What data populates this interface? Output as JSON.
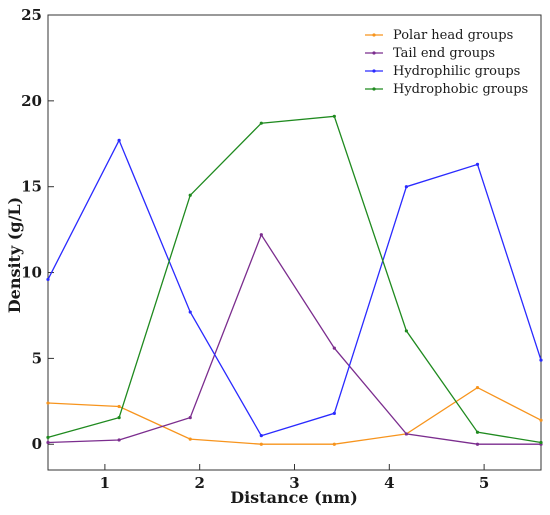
{
  "chart_data": {
    "type": "line",
    "title": "",
    "xlabel": "Distance (nm)",
    "ylabel": "Density (g/L)",
    "xlim": [
      0.4,
      5.6
    ],
    "ylim": [
      -1.5,
      25
    ],
    "xticks": [
      1,
      2,
      3,
      4,
      5
    ],
    "yticks": [
      0,
      5,
      10,
      15,
      20,
      25
    ],
    "x": [
      0.4,
      1.15,
      1.9,
      2.65,
      3.42,
      4.18,
      4.93,
      5.6
    ],
    "legend_position": "top-right",
    "grid": false,
    "series": [
      {
        "name": "Polar head groups",
        "color": "#f7941d",
        "values": [
          2.4,
          2.2,
          0.3,
          0.0,
          0.0,
          0.6,
          3.3,
          1.4
        ]
      },
      {
        "name": "Tail end groups",
        "color": "#7b2d8e",
        "values": [
          0.1,
          0.25,
          1.55,
          12.2,
          5.6,
          0.6,
          0.0,
          0.0
        ]
      },
      {
        "name": "Hydrophilic groups",
        "color": "#2a2aff",
        "values": [
          9.6,
          17.7,
          7.7,
          0.5,
          1.8,
          15.0,
          16.3,
          4.9
        ]
      },
      {
        "name": "Hydrophobic groups",
        "color": "#1f8a1f",
        "values": [
          0.4,
          1.55,
          14.5,
          18.7,
          19.1,
          6.6,
          0.7,
          0.1
        ]
      }
    ]
  }
}
